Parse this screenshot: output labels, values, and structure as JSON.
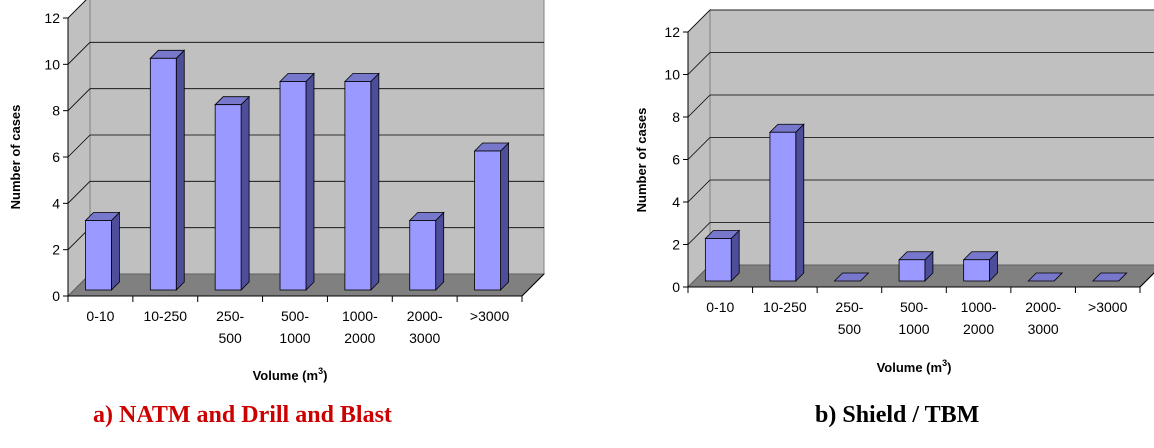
{
  "chart_data": [
    {
      "type": "bar",
      "title": "",
      "categories": [
        [
          "0-10"
        ],
        [
          "10-250"
        ],
        [
          "250-",
          "500"
        ],
        [
          "500-",
          "1000"
        ],
        [
          "1000-",
          "2000"
        ],
        [
          "2000-",
          "3000"
        ],
        [
          ">3000"
        ]
      ],
      "values": [
        3,
        10,
        8,
        9,
        9,
        3,
        6
      ],
      "xlabel": "Volume (m",
      "xlabel_sup": "3",
      "xlabel_end": ")",
      "ylabel": "Number of cases",
      "yticks": [
        "0",
        "2",
        "4",
        "6",
        "8",
        "10",
        "12"
      ],
      "ylim": [
        0,
        12
      ],
      "grid": true,
      "style": "3d-column"
    },
    {
      "type": "bar",
      "title": "",
      "categories": [
        [
          "0-10"
        ],
        [
          "10-250"
        ],
        [
          "250-",
          "500"
        ],
        [
          "500-",
          "1000"
        ],
        [
          "1000-",
          "2000"
        ],
        [
          "2000-",
          "3000"
        ],
        [
          ">3000"
        ]
      ],
      "values": [
        2,
        7,
        0,
        1,
        1,
        0,
        0
      ],
      "xlabel": "Volume (m",
      "xlabel_sup": "3",
      "xlabel_end": ")",
      "ylabel": "Number of cases",
      "yticks": [
        "0",
        "2",
        "4",
        "6",
        "8",
        "10",
        "12"
      ],
      "ylim": [
        0,
        12
      ],
      "grid": true,
      "style": "3d-column"
    }
  ],
  "captions": {
    "a": "a) NATM and Drill and Blast",
    "b": "b) Shield / TBM"
  },
  "colors": {
    "bar_front": "#9999ff",
    "bar_side": "#4d4d99",
    "bar_top": "#7777cc",
    "wall": "#c0c0c0",
    "floor": "#808080",
    "caption_a": "#cc0000"
  }
}
